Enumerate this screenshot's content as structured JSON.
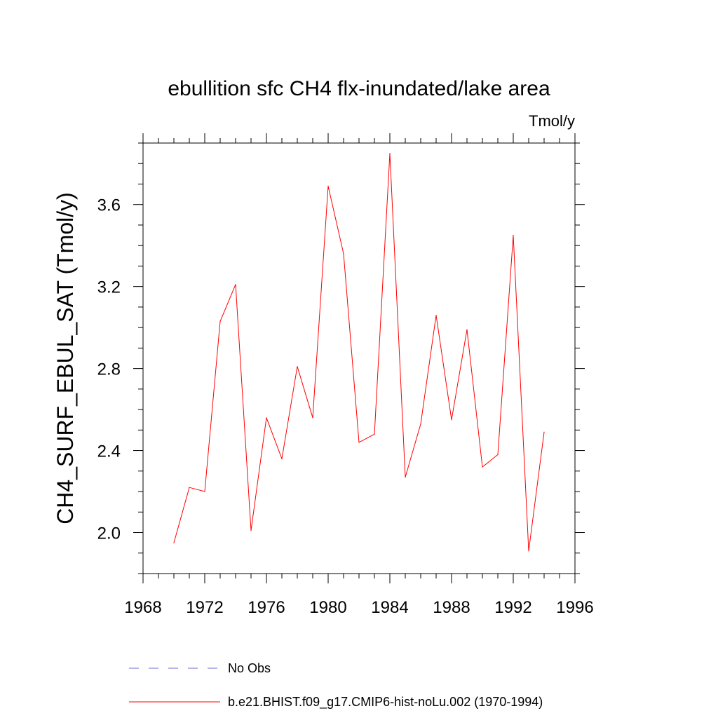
{
  "chart_data": {
    "type": "line",
    "title": "ebullition sfc CH4 flx-inundated/lake area",
    "units": "Tmol/y",
    "ylabel": "CH4_SURF_EBUL_SAT  (Tmol/y)",
    "xlabel": "",
    "xlim": [
      1968,
      1996
    ],
    "ylim": [
      1.8,
      3.9
    ],
    "x_ticks": [
      "1968",
      "1972",
      "1976",
      "1980",
      "1984",
      "1988",
      "1992",
      "1996"
    ],
    "y_ticks": [
      "2.0",
      "2.4",
      "2.8",
      "3.2",
      "3.6"
    ],
    "grid": false,
    "legend_position": "bottom",
    "series": [
      {
        "name": "No Obs",
        "color": "#6b6bd6",
        "dash": "dashed",
        "x": [],
        "y": []
      },
      {
        "name": "b.e21.BHIST.f09_g17.CMIP6-hist-noLu.002 (1970-1994)",
        "color": "#ff0000",
        "dash": "solid",
        "x": [
          1970,
          1971,
          1972,
          1973,
          1974,
          1975,
          1976,
          1977,
          1978,
          1979,
          1980,
          1981,
          1982,
          1983,
          1984,
          1985,
          1986,
          1987,
          1988,
          1989,
          1990,
          1991,
          1992,
          1993,
          1994
        ],
        "y": [
          1.95,
          2.22,
          2.2,
          3.03,
          3.21,
          2.01,
          2.56,
          2.36,
          2.81,
          2.56,
          3.69,
          3.36,
          2.44,
          2.48,
          3.85,
          2.27,
          2.53,
          3.06,
          2.55,
          2.99,
          2.32,
          2.38,
          3.45,
          1.91,
          2.49
        ]
      }
    ]
  }
}
